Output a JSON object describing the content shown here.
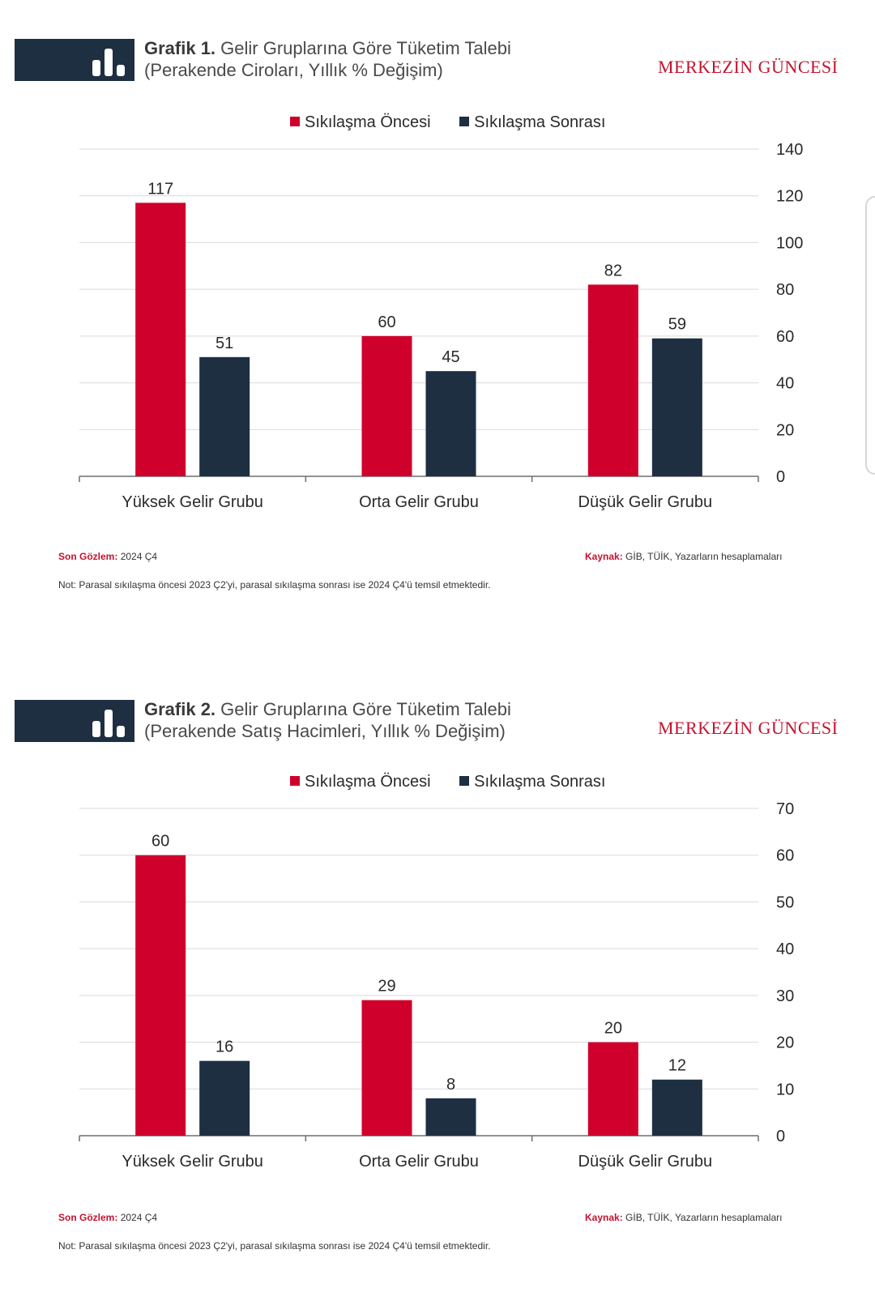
{
  "brand": "MERKEZİN GÜNCESİ",
  "colors": {
    "before": "#d0002c",
    "after": "#1e2f42",
    "accent": "#c4122f",
    "grid": "#d9d9d9"
  },
  "legend": {
    "before": "Sıkılaşma Öncesi",
    "after": "Sıkılaşma Sonrası"
  },
  "footer": {
    "son_label": "Son Gözlem:",
    "son_value": "2024 Ç4",
    "kaynak_label": "Kaynak:",
    "kaynak_value": "GİB, TÜİK, Yazarların hesaplamaları",
    "not": "Not: Parasal sıkılaşma öncesi 2023 Ç2'yi, parasal sıkılaşma sonrası ise 2024 Ç4'ü temsil etmektedir."
  },
  "chart_data": [
    {
      "type": "bar",
      "label": "Grafik 1.",
      "title": "Gelir Gruplarına Göre Tüketim Talebi",
      "subtitle": "(Perakende Ciroları, Yıllık % Değişim)",
      "categories": [
        "Yüksek Gelir Grubu",
        "Orta Gelir Grubu",
        "Düşük Gelir Grubu"
      ],
      "series": [
        {
          "name": "Sıkılaşma Öncesi",
          "values": [
            117,
            60,
            82
          ]
        },
        {
          "name": "Sıkılaşma Sonrası",
          "values": [
            51,
            45,
            59
          ]
        }
      ],
      "ylim": [
        0,
        140
      ],
      "yticks": [
        0,
        20,
        40,
        60,
        80,
        100,
        120,
        140
      ],
      "y_axis_side": "right",
      "grid": true,
      "legend_position": "top-center"
    },
    {
      "type": "bar",
      "label": "Grafik 2.",
      "title": "Gelir Gruplarına Göre Tüketim Talebi",
      "subtitle": "(Perakende Satış Hacimleri, Yıllık % Değişim)",
      "categories": [
        "Yüksek Gelir Grubu",
        "Orta Gelir Grubu",
        "Düşük Gelir Grubu"
      ],
      "series": [
        {
          "name": "Sıkılaşma Öncesi",
          "values": [
            60,
            29,
            20
          ]
        },
        {
          "name": "Sıkılaşma Sonrası",
          "values": [
            16,
            8,
            12
          ]
        }
      ],
      "ylim": [
        0,
        70
      ],
      "yticks": [
        0,
        10,
        20,
        30,
        40,
        50,
        60,
        70
      ],
      "y_axis_side": "right",
      "grid": true,
      "legend_position": "top-center"
    }
  ]
}
